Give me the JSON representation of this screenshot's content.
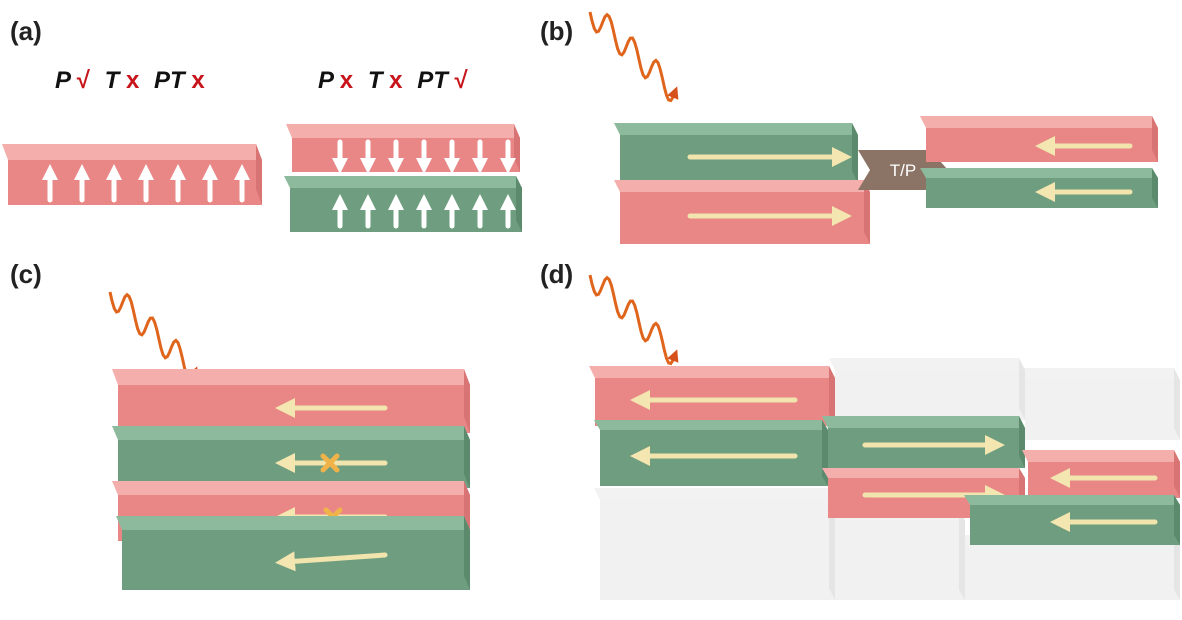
{
  "panel_a": {
    "label": "(a)",
    "left": [
      {
        "op": "P",
        "mark": "√"
      },
      {
        "op": "T",
        "mark": "x"
      },
      {
        "op": "PT",
        "mark": "x"
      }
    ],
    "right": [
      {
        "op": "P",
        "mark": "x"
      },
      {
        "op": "T",
        "mark": "x"
      },
      {
        "op": "PT",
        "mark": "√"
      }
    ]
  },
  "panel_b": {
    "label": "(b)",
    "operation": "T/P"
  },
  "panel_c": {
    "label": "(c)"
  },
  "panel_d": {
    "label": "(d)"
  }
}
